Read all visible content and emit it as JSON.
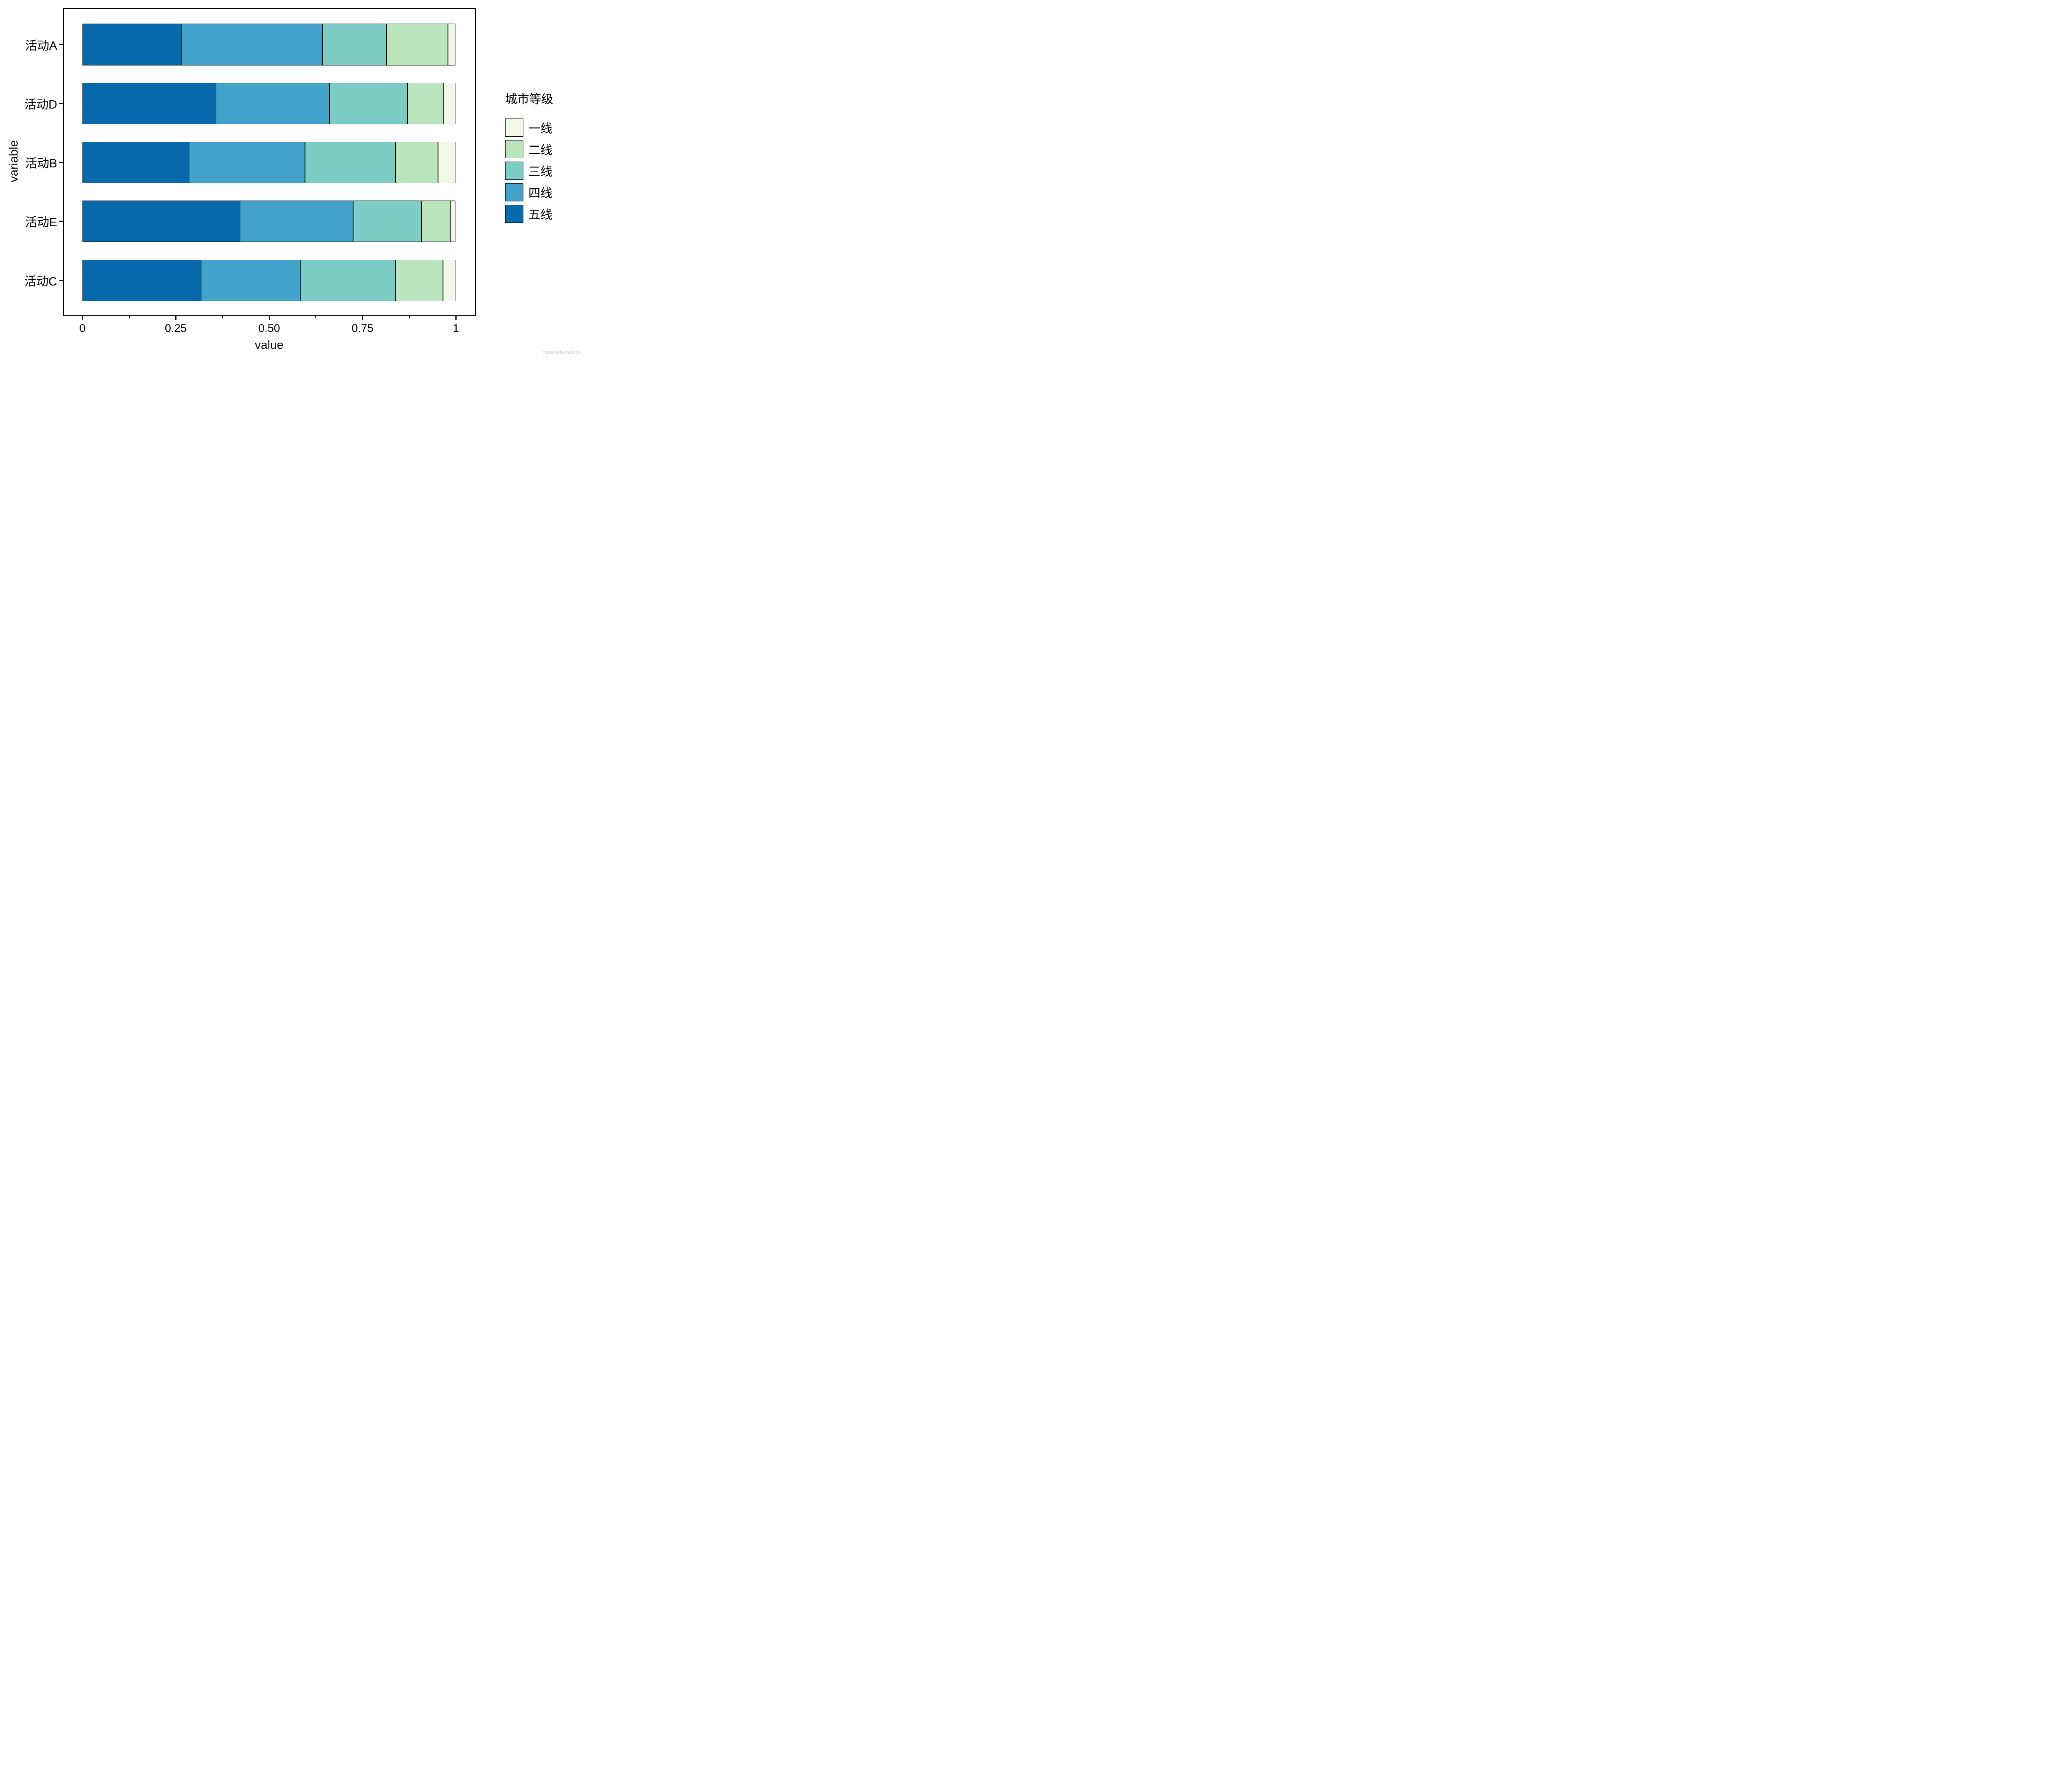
{
  "figure": {
    "watermark": "CSDN @蟹老板2020"
  },
  "chart_data": {
    "type": "bar",
    "orientation": "horizontal",
    "stacked": true,
    "normalized": true,
    "title": "",
    "xlabel": "value",
    "ylabel": "variable",
    "xlim": [
      0,
      1
    ],
    "categories": [
      "活动A",
      "活动D",
      "活动B",
      "活动E",
      "活动C"
    ],
    "series": [
      {
        "name": "五线",
        "color": "#0868ac",
        "values": [
          0.267,
          0.359,
          0.286,
          0.423,
          0.319
        ]
      },
      {
        "name": "四线",
        "color": "#43a2ca",
        "values": [
          0.377,
          0.304,
          0.311,
          0.303,
          0.267
        ]
      },
      {
        "name": "三线",
        "color": "#7bccc4",
        "values": [
          0.172,
          0.208,
          0.242,
          0.183,
          0.254
        ]
      },
      {
        "name": "二线",
        "color": "#bae4bc",
        "values": [
          0.164,
          0.098,
          0.114,
          0.079,
          0.127
        ]
      },
      {
        "name": "一线",
        "color": "#f0f9e8",
        "values": [
          0.02,
          0.031,
          0.047,
          0.012,
          0.033
        ]
      }
    ],
    "x_major_ticks": [
      {
        "value": 0,
        "label": "0"
      },
      {
        "value": 0.25,
        "label": "0.25"
      },
      {
        "value": 0.5,
        "label": "0.50"
      },
      {
        "value": 0.75,
        "label": "0.75"
      },
      {
        "value": 1,
        "label": "1"
      }
    ],
    "x_minor_ticks": [
      0.125,
      0.375,
      0.625,
      0.875
    ],
    "legend": {
      "title": "城市等级",
      "position": "right",
      "entries": [
        {
          "label": "一线",
          "color": "#f0f9e8"
        },
        {
          "label": "二线",
          "color": "#bae4bc"
        },
        {
          "label": "三线",
          "color": "#7bccc4"
        },
        {
          "label": "四线",
          "color": "#43a2ca"
        },
        {
          "label": "五线",
          "color": "#0868ac"
        }
      ]
    },
    "bar_outline_color": "#000000",
    "background": "#ffffff"
  }
}
